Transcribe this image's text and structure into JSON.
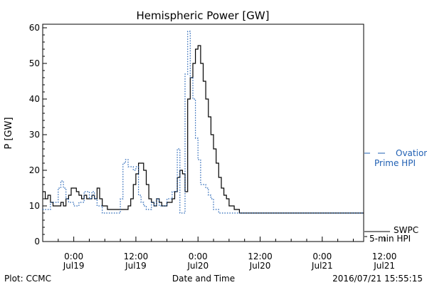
{
  "chart_data": {
    "type": "line",
    "title": "Hemispheric Power [GW]",
    "xlabel": "Date and Time",
    "ylabel": "P [GW]",
    "ylim": [
      0,
      61
    ],
    "xlim_hours": [
      -6,
      56
    ],
    "yticks": [
      0,
      10,
      20,
      30,
      40,
      50,
      60
    ],
    "xticks": [
      {
        "hour": 0,
        "time": "0:00",
        "date": "Jul19"
      },
      {
        "hour": 12,
        "time": "12:00",
        "date": "Jul19"
      },
      {
        "hour": 24,
        "time": "0:00",
        "date": "Jul20"
      },
      {
        "hour": 36,
        "time": "12:00",
        "date": "Jul20"
      },
      {
        "hour": 48,
        "time": "0:00",
        "date": "Jul21"
      },
      {
        "hour": 60,
        "time": "12:00",
        "date": "Jul21"
      }
    ],
    "grid": false,
    "legend_placement": "right",
    "series": [
      {
        "name": "SWPC 5-min HPI",
        "label_line1": "SWPC",
        "label_line2": "5-min HPI",
        "style": "solid",
        "color": "#000000",
        "x": [
          -6.5,
          -6,
          -5.5,
          -5,
          -4.5,
          -4,
          -3.5,
          -3,
          -2.5,
          -2,
          -1.5,
          -1,
          -0.5,
          0,
          0.5,
          1,
          1.5,
          2,
          2.5,
          3,
          3.5,
          4,
          4.5,
          5,
          5.5,
          6,
          6.5,
          7,
          7.5,
          8,
          8.5,
          9,
          9.5,
          10,
          10.5,
          11,
          11.5,
          12,
          12.5,
          13,
          13.5,
          14,
          14.5,
          15,
          15.5,
          16,
          16.5,
          17,
          17.5,
          18,
          18.5,
          19,
          19.5,
          20,
          20.5,
          21,
          21.5,
          22,
          22.5,
          23,
          23.5,
          24,
          24.5,
          25,
          25.5,
          26,
          26.5,
          27,
          27.5,
          28,
          28.5,
          29,
          29.5,
          30,
          30.5,
          31,
          31.5,
          32,
          32.5,
          33,
          33.5,
          34,
          34.5,
          35,
          35.5,
          36,
          36.5,
          37,
          37.5,
          38,
          38.5,
          39,
          39.5,
          40,
          40.5,
          41,
          42,
          44,
          46,
          48,
          50,
          52,
          54,
          56
        ],
        "y": [
          12,
          14,
          12,
          13,
          11,
          10,
          10,
          10,
          11,
          10,
          12,
          13,
          15,
          15,
          14,
          13,
          12,
          13,
          12,
          12,
          13,
          12,
          15,
          12,
          10,
          10,
          9,
          9,
          9,
          9,
          9,
          9,
          9,
          9,
          10,
          12,
          16,
          19,
          22,
          22,
          20,
          16,
          12,
          11,
          10,
          12,
          11,
          10,
          10,
          11,
          11,
          12,
          14,
          18,
          20,
          19,
          14,
          40,
          46,
          50,
          54,
          55,
          50,
          45,
          40,
          35,
          30,
          26,
          22,
          18,
          15,
          13,
          12,
          10,
          10,
          9,
          9,
          8,
          8,
          8,
          8,
          8,
          8,
          8,
          8,
          8,
          8,
          8,
          8,
          8,
          8,
          8,
          8,
          8,
          8,
          8,
          8,
          8,
          8,
          8,
          8,
          8,
          8,
          8
        ]
      },
      {
        "name": "Ovation Prime HPI",
        "label_line1": "Ovation",
        "label_line2": "Prime HPI",
        "style": "dotted",
        "color": "#1f5fb3",
        "x": [
          -6.5,
          -6,
          -5,
          -4.5,
          -4,
          -3,
          -2.5,
          -2,
          -1.5,
          -1,
          0,
          0.5,
          1,
          1.5,
          2,
          3,
          3.5,
          4,
          4.5,
          5,
          5.5,
          6,
          6.5,
          7,
          7.5,
          8,
          8.5,
          9,
          9.5,
          10,
          10.5,
          11,
          11.5,
          12,
          12.5,
          13,
          13.5,
          14,
          14.5,
          15,
          15.5,
          16,
          16.5,
          17,
          18,
          19,
          20,
          20.5,
          21,
          21.5,
          22,
          22.5,
          23,
          23.5,
          24,
          24.5,
          25,
          25.5,
          26,
          26.5,
          27,
          28,
          29,
          30,
          31,
          32,
          34,
          36,
          40,
          44,
          48,
          52,
          56
        ],
        "y": [
          9,
          9,
          9,
          11,
          11,
          15,
          17,
          15,
          12,
          11,
          10,
          10,
          11,
          11,
          14,
          12,
          14,
          12,
          10,
          10,
          8,
          8,
          8,
          8,
          8,
          8,
          8,
          12,
          22,
          23,
          21,
          21,
          20,
          21,
          13,
          11,
          10,
          9,
          9,
          11,
          10,
          12,
          10,
          10,
          12,
          14,
          26,
          8,
          8,
          47,
          59,
          46,
          40,
          29,
          23,
          16,
          16,
          15,
          13,
          12,
          9,
          8,
          8,
          8,
          8,
          8,
          8,
          8,
          8,
          8,
          8,
          8,
          8
        ]
      }
    ]
  },
  "footer": {
    "left": "Plot: CCMC",
    "timestamp": "2016/07/21 15:55:15"
  }
}
